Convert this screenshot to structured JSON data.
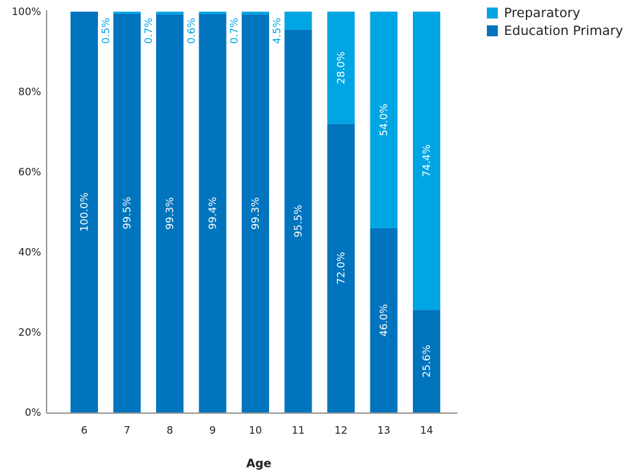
{
  "chart_data": {
    "type": "bar",
    "stacked": true,
    "categories": [
      "6",
      "7",
      "8",
      "9",
      "10",
      "11",
      "12",
      "13",
      "14"
    ],
    "series": [
      {
        "name": "Education Primary",
        "values": [
          100.0,
          99.5,
          99.3,
          99.4,
          99.3,
          95.5,
          72.0,
          46.0,
          25.6
        ]
      },
      {
        "name": "Preparatory",
        "values": [
          0.0,
          0.5,
          0.7,
          0.6,
          0.7,
          4.5,
          28.0,
          54.0,
          74.4
        ]
      }
    ],
    "data_labels": {
      "Education Primary": [
        "100.0%",
        "99.5%",
        "99.3%",
        "99.4%",
        "99.3%",
        "95.5%",
        "72.0%",
        "46.0%",
        "25.6%"
      ],
      "Preparatory": [
        "",
        "0.5%",
        "0.7%",
        "0.6%",
        "0.7%",
        "4.5%",
        "28.0%",
        "54.0%",
        "74.4%"
      ]
    },
    "xlabel": "Age",
    "ylabel": "",
    "ylim": [
      0,
      100
    ],
    "yticks": [
      0,
      20,
      40,
      60,
      80,
      100
    ],
    "ytick_labels": [
      "0%",
      "20%",
      "40%",
      "60%",
      "80%",
      "100%"
    ],
    "grid": false,
    "legend_position": "top-right",
    "legend_order": [
      "Preparatory",
      "Education Primary"
    ],
    "colors": {
      "Education Primary": "#0074bd",
      "Preparatory": "#00a5e3",
      "axis": "#999999"
    }
  }
}
